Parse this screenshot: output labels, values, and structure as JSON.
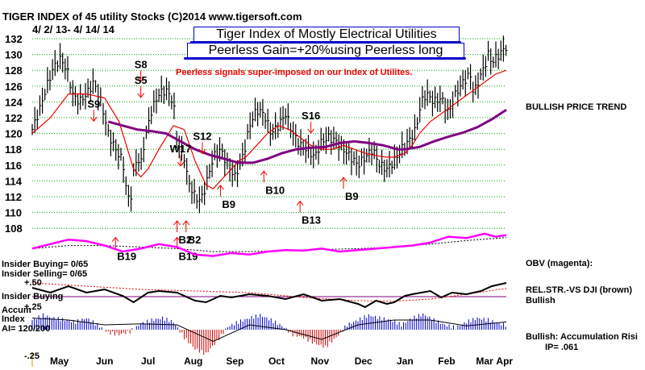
{
  "header": {
    "title_line": "TIGER INDEX of  45 utility Stocks  (C)2014   www.tigersoft.com",
    "date_range": "4/ 2/ 13-  4/ 14/ 14",
    "title_box_1": "Tiger Index of Mostly Electrical Utilities",
    "title_box_2": "Peerless Gain=+20%using Peerless long",
    "annotation": "Peerless signals super-imposed on our Index of Utilites."
  },
  "right_labels": {
    "trend": "BULLISH PRICE TREND",
    "obv": "OBV (magenta):",
    "relstr": "REL.STR.-VS DJI (brown)",
    "relstr_status": "Bullish",
    "accum": "Bullish: Accumulation Risi",
    "ip": "IP=  .061"
  },
  "left_labels": {
    "insider_buying_ratio": "Insider Buying= 0/65",
    "insider_selling_ratio": "Insider Selling= 0/65",
    "plus50": "+.50",
    "insider_buying": "Insider Buying",
    "plus25": "+.25",
    "accum": "Accum",
    "index": "Index",
    "ai": "AI= 120/200",
    "minus25": "-.25"
  },
  "colors": {
    "price_bars": "#000000",
    "ma_short": "#ee0000",
    "ma_long": "#800080",
    "obv": "#ff00ff",
    "accum_pos": "#0000cc",
    "accum_neg": "#cc0000",
    "grid": "#00aa00",
    "signal": "#ee0000",
    "title_border": "#0000cc"
  },
  "chart_data": {
    "type": "line",
    "title": "TIGER INDEX of  45 utility Stocks  (C)2014   www.tigersoft.com",
    "x_tick_labels": [
      "May",
      "Jun",
      "Jul",
      "Aug",
      "Sep",
      "Oct",
      "Nov",
      "Dec",
      "Jan",
      "Feb",
      "Mar",
      "Apr"
    ],
    "y_tick_labels": [
      "132",
      "130",
      "128",
      "126",
      "124",
      "122",
      "120",
      "118",
      "116",
      "114",
      "112",
      "110",
      "108"
    ],
    "ylim": [
      107,
      132
    ],
    "grid": true,
    "x_domain": [
      0,
      262
    ],
    "month_tick_x": [
      15,
      40,
      64,
      89,
      112,
      135,
      159,
      183,
      206,
      229,
      250,
      261
    ],
    "price": {
      "x": [
        0,
        4,
        8,
        12,
        16,
        20,
        22,
        26,
        30,
        34,
        38,
        42,
        46,
        50,
        52,
        54,
        56,
        58,
        60,
        62,
        66,
        70,
        74,
        78,
        80,
        84,
        86,
        88,
        90,
        92,
        94,
        96,
        100,
        104,
        108,
        112,
        116,
        118,
        120,
        124,
        128,
        132,
        136,
        140,
        144,
        148,
        152,
        156,
        160,
        164,
        168,
        172,
        176,
        180,
        184,
        188,
        192,
        196,
        200,
        204,
        208,
        212,
        214,
        216,
        218,
        222,
        226,
        230,
        234,
        238,
        242,
        244,
        248,
        250,
        252,
        254,
        256,
        258,
        260,
        262
      ],
      "y": [
        120.5,
        123,
        126,
        128.5,
        129.5,
        127.5,
        125,
        124,
        125,
        126.5,
        124,
        120,
        118,
        116.5,
        113,
        111,
        115,
        117,
        116,
        119,
        123,
        125,
        125.5,
        124,
        119,
        117,
        114,
        113,
        112,
        111.5,
        112,
        113.5,
        117,
        118,
        116,
        114.5,
        117,
        118.5,
        121,
        123,
        122.5,
        120,
        121,
        122.5,
        120,
        118.5,
        118,
        117,
        119,
        119.5,
        119,
        118,
        117,
        116,
        117,
        118,
        116,
        115.5,
        116.5,
        118,
        119,
        120.5,
        123,
        124.5,
        125,
        124,
        124.5,
        122.5,
        125,
        126.5,
        127.5,
        125,
        127.5,
        128.5,
        130,
        129,
        129.5,
        130,
        130.5,
        131
      ]
    },
    "ma_short": {
      "x": [
        0,
        10,
        20,
        30,
        40,
        48,
        52,
        56,
        60,
        64,
        70,
        78,
        84,
        90,
        96,
        100,
        104,
        110,
        114,
        118,
        124,
        130,
        136,
        142,
        148,
        154,
        160,
        166,
        172,
        178,
        184,
        190,
        196,
        200,
        206,
        210,
        214,
        220,
        226,
        232,
        238,
        244,
        250,
        256,
        262
      ],
      "y": [
        120,
        122,
        125,
        125,
        124.5,
        121.5,
        118.5,
        115.5,
        114.5,
        115.5,
        118,
        121,
        120.5,
        116.5,
        113.5,
        113,
        114,
        115.5,
        116.5,
        117,
        118.5,
        120,
        121,
        120.5,
        119.5,
        118.5,
        118,
        118,
        118.5,
        118,
        117.5,
        117.2,
        117,
        117,
        117.5,
        118.5,
        120,
        121.5,
        122.5,
        123.5,
        124.5,
        125.5,
        126.5,
        127.5,
        128
      ]
    },
    "ma_long": {
      "x": [
        42,
        50,
        58,
        66,
        74,
        82,
        90,
        98,
        106,
        114,
        122,
        130,
        138,
        146,
        154,
        162,
        170,
        178,
        186,
        194,
        202,
        206,
        214,
        222,
        230,
        238,
        246,
        254,
        262
      ],
      "y": [
        121.5,
        121,
        120.5,
        120.3,
        120,
        119,
        118,
        117.3,
        116.8,
        116.3,
        116.3,
        116.8,
        117.5,
        118,
        118.2,
        118.3,
        118.8,
        119,
        118.8,
        118.5,
        118,
        118,
        118.3,
        119,
        119.6,
        120.1,
        120.8,
        121.8,
        123
      ]
    },
    "obv": {
      "x": [
        0,
        10,
        20,
        30,
        40,
        50,
        60,
        70,
        80,
        90,
        100,
        110,
        120,
        130,
        140,
        150,
        160,
        170,
        180,
        190,
        200,
        210,
        220,
        230,
        240,
        250,
        256,
        262
      ],
      "y": [
        0.45,
        0.6,
        0.75,
        0.7,
        0.55,
        0.35,
        0.45,
        0.6,
        0.5,
        0.25,
        0.2,
        0.3,
        0.25,
        0.35,
        0.4,
        0.38,
        0.45,
        0.35,
        0.4,
        0.45,
        0.5,
        0.55,
        0.65,
        0.85,
        0.8,
        0.95,
        0.85,
        0.9
      ]
    },
    "obv_ma": {
      "x": [
        0,
        20,
        40,
        60,
        80,
        100,
        120,
        140,
        160,
        180,
        200,
        220,
        240,
        262
      ],
      "y": [
        0.45,
        0.55,
        0.55,
        0.5,
        0.45,
        0.35,
        0.35,
        0.38,
        0.42,
        0.45,
        0.5,
        0.6,
        0.72,
        0.82
      ]
    },
    "relstr": {
      "x": [
        0,
        10,
        20,
        30,
        40,
        50,
        56,
        64,
        70,
        80,
        90,
        96,
        104,
        110,
        120,
        130,
        140,
        150,
        160,
        170,
        180,
        184,
        190,
        196,
        200,
        206,
        210,
        220,
        226,
        232,
        240,
        248,
        254,
        258,
        262
      ],
      "y": [
        0.7,
        0.55,
        0.75,
        0.55,
        0.65,
        0.45,
        0.25,
        0.55,
        0.6,
        0.55,
        0.3,
        0.25,
        0.45,
        0.4,
        0.5,
        0.45,
        0.35,
        0.5,
        0.3,
        0.35,
        0.2,
        0.1,
        0.3,
        0.2,
        0.25,
        0.45,
        0.5,
        0.6,
        0.4,
        0.55,
        0.5,
        0.6,
        0.75,
        0.8,
        0.85
      ]
    },
    "relstr_ma": {
      "x": [
        0,
        30,
        60,
        90,
        120,
        150,
        180,
        200,
        220,
        240,
        262
      ],
      "y": [
        0.85,
        0.75,
        0.65,
        0.6,
        0.55,
        0.4,
        0.3,
        0.28,
        0.35,
        0.5,
        0.68
      ]
    },
    "accum": {
      "x": [
        0,
        6,
        12,
        18,
        24,
        30,
        36,
        42,
        48,
        54,
        60,
        66,
        72,
        78,
        84,
        90,
        96,
        102,
        108,
        114,
        120,
        126,
        132,
        138,
        144,
        150,
        156,
        162,
        168,
        174,
        180,
        186,
        192,
        198,
        204,
        210,
        216,
        222,
        228,
        234,
        240,
        246,
        252,
        258,
        262
      ],
      "y": [
        0.1,
        0.15,
        0.12,
        0.1,
        0.08,
        0.12,
        0.05,
        -0.03,
        -0.05,
        -0.02,
        0.06,
        0.1,
        0.12,
        0.08,
        -0.08,
        -0.2,
        -0.25,
        -0.12,
        0.03,
        0.08,
        0.12,
        0.15,
        0.1,
        0.04,
        -0.05,
        -0.08,
        -0.14,
        -0.18,
        -0.08,
        0.05,
        0.1,
        0.15,
        0.12,
        0.1,
        0.05,
        0.12,
        0.16,
        0.1,
        0.05,
        0.02,
        0.08,
        0.12,
        0.1,
        0.06,
        0.05
      ]
    },
    "accum_ma": {
      "x": [
        0,
        20,
        40,
        60,
        80,
        100,
        120,
        140,
        160,
        180,
        200,
        220,
        240,
        262
      ],
      "y": [
        0.12,
        0.1,
        0.05,
        0.06,
        0.05,
        -0.12,
        0.05,
        0.0,
        -0.1,
        0.05,
        0.1,
        0.1,
        0.04,
        0.08
      ]
    },
    "signals": [
      {
        "label": "S8",
        "x": 60,
        "y": 128.3,
        "dir": "sell"
      },
      {
        "label": "S5",
        "x": 60,
        "y": 126.3,
        "dir": "sell"
      },
      {
        "label": "S9",
        "x": 34,
        "y": 123.3,
        "dir": "sell"
      },
      {
        "label": "S12",
        "x": 94,
        "y": 119.2,
        "dir": "sell"
      },
      {
        "label": "S16",
        "x": 154,
        "y": 121.8,
        "dir": "sell"
      },
      {
        "label": "W17",
        "x": 82,
        "y": 117.6,
        "dir": "sell"
      },
      {
        "label": "B9",
        "x": 104,
        "y": 111.6,
        "dir": "buy"
      },
      {
        "label": "B10",
        "x": 128,
        "y": 113.4,
        "dir": "buy"
      },
      {
        "label": "B13",
        "x": 148,
        "y": 109.6,
        "dir": "buy"
      },
      {
        "label": "B9",
        "x": 172,
        "y": 112.6,
        "dir": "buy"
      },
      {
        "label": "B19",
        "x": 46,
        "y": 105,
        "dir": "buy"
      },
      {
        "label": "B2",
        "x": 80,
        "y": 107.1,
        "dir": "buy"
      },
      {
        "label": "B2",
        "x": 85,
        "y": 107.1,
        "dir": "buy"
      },
      {
        "label": "B19",
        "x": 80,
        "y": 105,
        "dir": "buy"
      }
    ]
  }
}
